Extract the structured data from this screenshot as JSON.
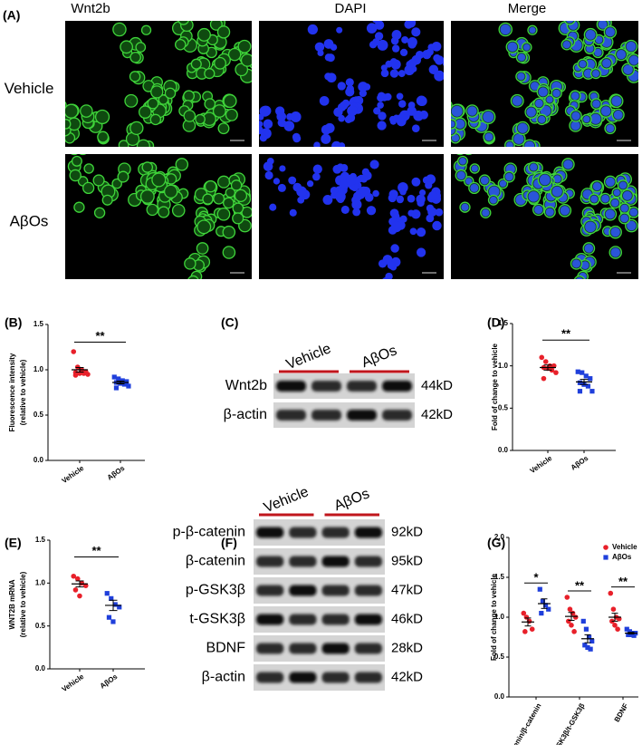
{
  "panel_a": {
    "panel": "(A)",
    "columns": [
      "Wnt2b",
      "DAPI",
      "Merge"
    ],
    "rows": [
      "Vehicle",
      "AβOs"
    ]
  },
  "blots": [
    {
      "panel": "(C)",
      "groups": [
        "Vehicle",
        "AβOs"
      ],
      "rows": [
        {
          "label": "Wnt2b",
          "size": "44kD"
        },
        {
          "label": "β-actin",
          "size": "42kD"
        }
      ]
    },
    {
      "panel": "(F)",
      "groups": [
        "Vehicle",
        "AβOs"
      ],
      "rows": [
        {
          "label": "p-β-catenin",
          "size": "92kD"
        },
        {
          "label": "β-catenin",
          "size": "95kD"
        },
        {
          "label": "p-GSK3β",
          "size": "47kD"
        },
        {
          "label": "t-GSK3β",
          "size": "46kD"
        },
        {
          "label": "BDNF",
          "size": "28kD"
        },
        {
          "label": "β-actin",
          "size": "42kD"
        }
      ]
    }
  ],
  "chart_data": [
    {
      "type": "dot",
      "panel": "(B)",
      "ylabel": [
        "Fluorescence intensity",
        "(relative to vehicle)"
      ],
      "categories": [
        "Vehicle",
        "AβOs"
      ],
      "groups": [
        {
          "color": "#e8202a",
          "marker": "circle",
          "values": [
            1.2,
            1.03,
            1.0,
            0.98,
            0.97,
            0.96,
            0.96,
            0.95,
            0.94
          ],
          "mean": 1.0,
          "error": 0.025
        },
        {
          "color": "#1f3fdb",
          "marker": "square",
          "values": [
            0.92,
            0.9,
            0.88,
            0.87,
            0.86,
            0.85,
            0.84,
            0.82,
            0.8
          ],
          "mean": 0.86,
          "error": 0.015
        }
      ],
      "ylim": [
        0,
        1.5
      ],
      "yticks": [
        {
          "value": 0,
          "label": "0.0"
        },
        {
          "value": 0.5,
          "label": "0.5"
        },
        {
          "value": 1,
          "label": "1.0"
        },
        {
          "value": 1.5,
          "label": "1.5"
        }
      ],
      "significance": "**"
    },
    {
      "type": "dot",
      "panel": "(D)",
      "ylabel": [
        "Fold of change to vehicle"
      ],
      "categories": [
        "Vehicle",
        "AβOs"
      ],
      "groups": [
        {
          "color": "#e8202a",
          "marker": "circle",
          "values": [
            1.1,
            1.05,
            1.0,
            1.0,
            0.98,
            0.97,
            0.95,
            0.92,
            0.85
          ],
          "mean": 0.98,
          "error": 0.03
        },
        {
          "color": "#1f3fdb",
          "marker": "square",
          "values": [
            0.93,
            0.92,
            0.88,
            0.85,
            0.8,
            0.78,
            0.76,
            0.7,
            0.7
          ],
          "mean": 0.81,
          "error": 0.03
        }
      ],
      "ylim": [
        0,
        1.5
      ],
      "yticks": [
        {
          "value": 0,
          "label": "0.0"
        },
        {
          "value": 0.5,
          "label": "0.5"
        },
        {
          "value": 1,
          "label": "1.0"
        },
        {
          "value": 1.5,
          "label": "1.5"
        }
      ],
      "significance": "**"
    },
    {
      "type": "dot",
      "panel": "(E)",
      "ylabel": [
        "WNT2B mRNA",
        "(relative to vehicle)"
      ],
      "categories": [
        "Vehicle",
        "AβOs"
      ],
      "groups": [
        {
          "color": "#e8202a",
          "marker": "circle",
          "values": [
            1.08,
            1.05,
            1.0,
            0.97,
            0.92,
            0.85
          ],
          "mean": 0.99,
          "error": 0.035
        },
        {
          "color": "#1f3fdb",
          "marker": "square",
          "values": [
            0.88,
            0.82,
            0.75,
            0.72,
            0.6,
            0.55
          ],
          "mean": 0.74,
          "error": 0.06
        }
      ],
      "ylim": [
        0,
        1.5
      ],
      "yticks": [
        {
          "value": 0,
          "label": "0.0"
        },
        {
          "value": 0.5,
          "label": "0.5"
        },
        {
          "value": 1,
          "label": "1.0"
        },
        {
          "value": 1.5,
          "label": "1.5"
        }
      ],
      "significance": "**"
    },
    {
      "type": "grouped_dot",
      "panel": "(G)",
      "ylabel": [
        "Fold of change to vehicle"
      ],
      "categories": [
        "p-β-catenin/β-catenin",
        "p-GSK3β/t-GSK3β",
        "BDNF"
      ],
      "series": [
        {
          "name": "Vehicle",
          "color": "#e8202a",
          "marker": "circle",
          "values": [
            [
              1.05,
              1.0,
              0.95,
              0.85,
              0.82
            ],
            [
              1.25,
              1.1,
              1.05,
              1.0,
              0.95,
              0.9,
              0.82
            ],
            [
              1.3,
              1.1,
              1.0,
              0.98,
              0.95,
              0.9,
              0.85
            ]
          ],
          "mean": [
            0.94,
            1.01,
            1.0
          ],
          "error": [
            0.05,
            0.05,
            0.05
          ]
        },
        {
          "name": "AβOs",
          "color": "#1f3fdb",
          "marker": "square",
          "values": [
            [
              1.35,
              1.2,
              1.15,
              1.1,
              1.05
            ],
            [
              0.95,
              0.85,
              0.75,
              0.7,
              0.65,
              0.62,
              0.6
            ],
            [
              0.85,
              0.82,
              0.8,
              0.8,
              0.78,
              0.78,
              0.77
            ]
          ],
          "mean": [
            1.17,
            0.73,
            0.8
          ],
          "error": [
            0.06,
            0.05,
            0.01
          ]
        }
      ],
      "ylim": [
        0,
        2
      ],
      "yticks": [
        {
          "value": 0,
          "label": "0.0"
        },
        {
          "value": 0.5,
          "label": "0.5"
        },
        {
          "value": 1,
          "label": "1.0"
        },
        {
          "value": 1.5,
          "label": "1.5"
        },
        {
          "value": 2,
          "label": "2.0"
        }
      ],
      "significance": [
        "*",
        "**",
        "**"
      ],
      "legend": "top-right"
    }
  ]
}
